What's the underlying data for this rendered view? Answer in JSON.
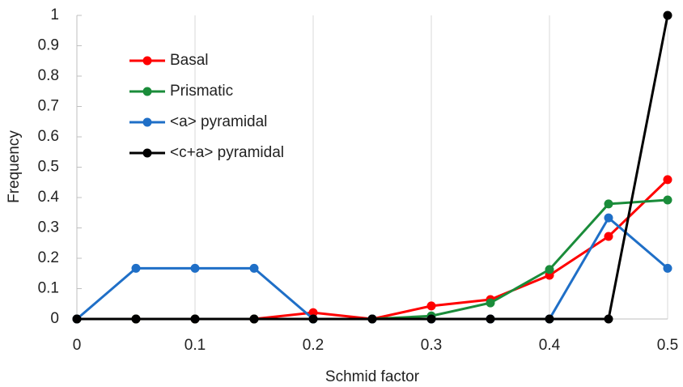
{
  "chart_data": {
    "type": "line",
    "x_label": "Schmid factor",
    "y_label": "Frequency",
    "x": [
      0,
      0.05,
      0.1,
      0.15,
      0.2,
      0.25,
      0.3,
      0.35,
      0.4,
      0.45,
      0.5
    ],
    "series": [
      {
        "name": "Basal",
        "color": "#ff0000",
        "values": [
          0,
          0,
          0,
          0,
          0.021,
          0,
          0.043,
          0.064,
          0.144,
          0.272,
          0.459
        ]
      },
      {
        "name": "Prismatic",
        "color": "#1a8c3a",
        "values": [
          0,
          0,
          0,
          0,
          0,
          0,
          0.01,
          0.053,
          0.163,
          0.379,
          0.392
        ]
      },
      {
        "name": "<a> pyramidal",
        "color": "#1f6fc7",
        "values": [
          0,
          0.167,
          0.167,
          0.167,
          0,
          0,
          0,
          0,
          0,
          0.333,
          0.167
        ]
      },
      {
        "name": "<c+a> pyramidal",
        "color": "#000000",
        "values": [
          0,
          0,
          0,
          0,
          0,
          0,
          0,
          0,
          0,
          0,
          1
        ]
      }
    ],
    "xlim": [
      0,
      0.5
    ],
    "xticks": [
      0,
      0.1,
      0.2,
      0.3,
      0.4,
      0.5
    ],
    "ylim": [
      0,
      1
    ],
    "yticks": [
      0,
      0.1,
      0.2,
      0.3,
      0.4,
      0.5,
      0.6,
      0.7,
      0.8,
      0.9,
      1
    ],
    "grid": "x",
    "legend": "upper-left"
  }
}
